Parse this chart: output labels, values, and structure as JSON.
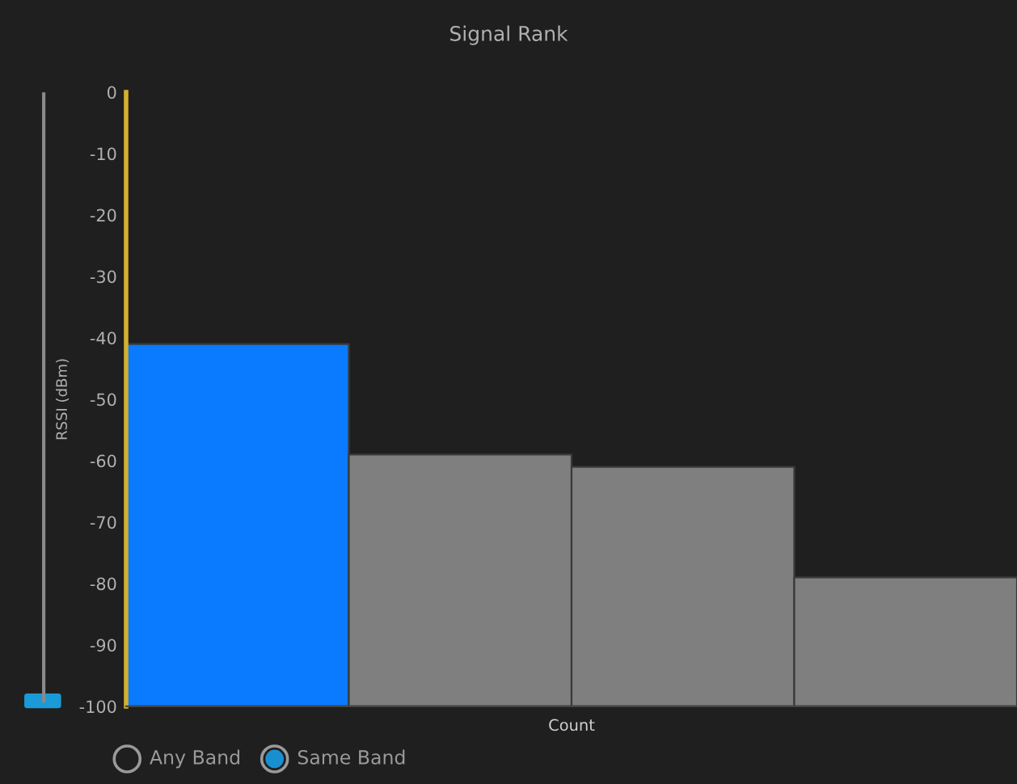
{
  "chart_data": {
    "type": "bar",
    "title": "Signal Rank",
    "xlabel": "Count",
    "ylabel": "RSSI (dBm)",
    "categories": [
      null,
      null,
      null,
      null
    ],
    "values": [
      59,
      41,
      39,
      21
    ],
    "base": [
      -100,
      -100,
      -100,
      -100
    ],
    "colors": [
      "#0a7aff",
      "#7f7f7f",
      "#7f7f7f",
      "#7f7f7f"
    ],
    "ylim": [
      -100,
      0
    ],
    "yticks": [
      0,
      -10,
      -20,
      -30,
      -40,
      -50,
      -60,
      -70,
      -80,
      -90,
      -100
    ],
    "grid": false,
    "legend": false,
    "annotations": [
      "Any Band",
      "Same Band"
    ]
  }
}
